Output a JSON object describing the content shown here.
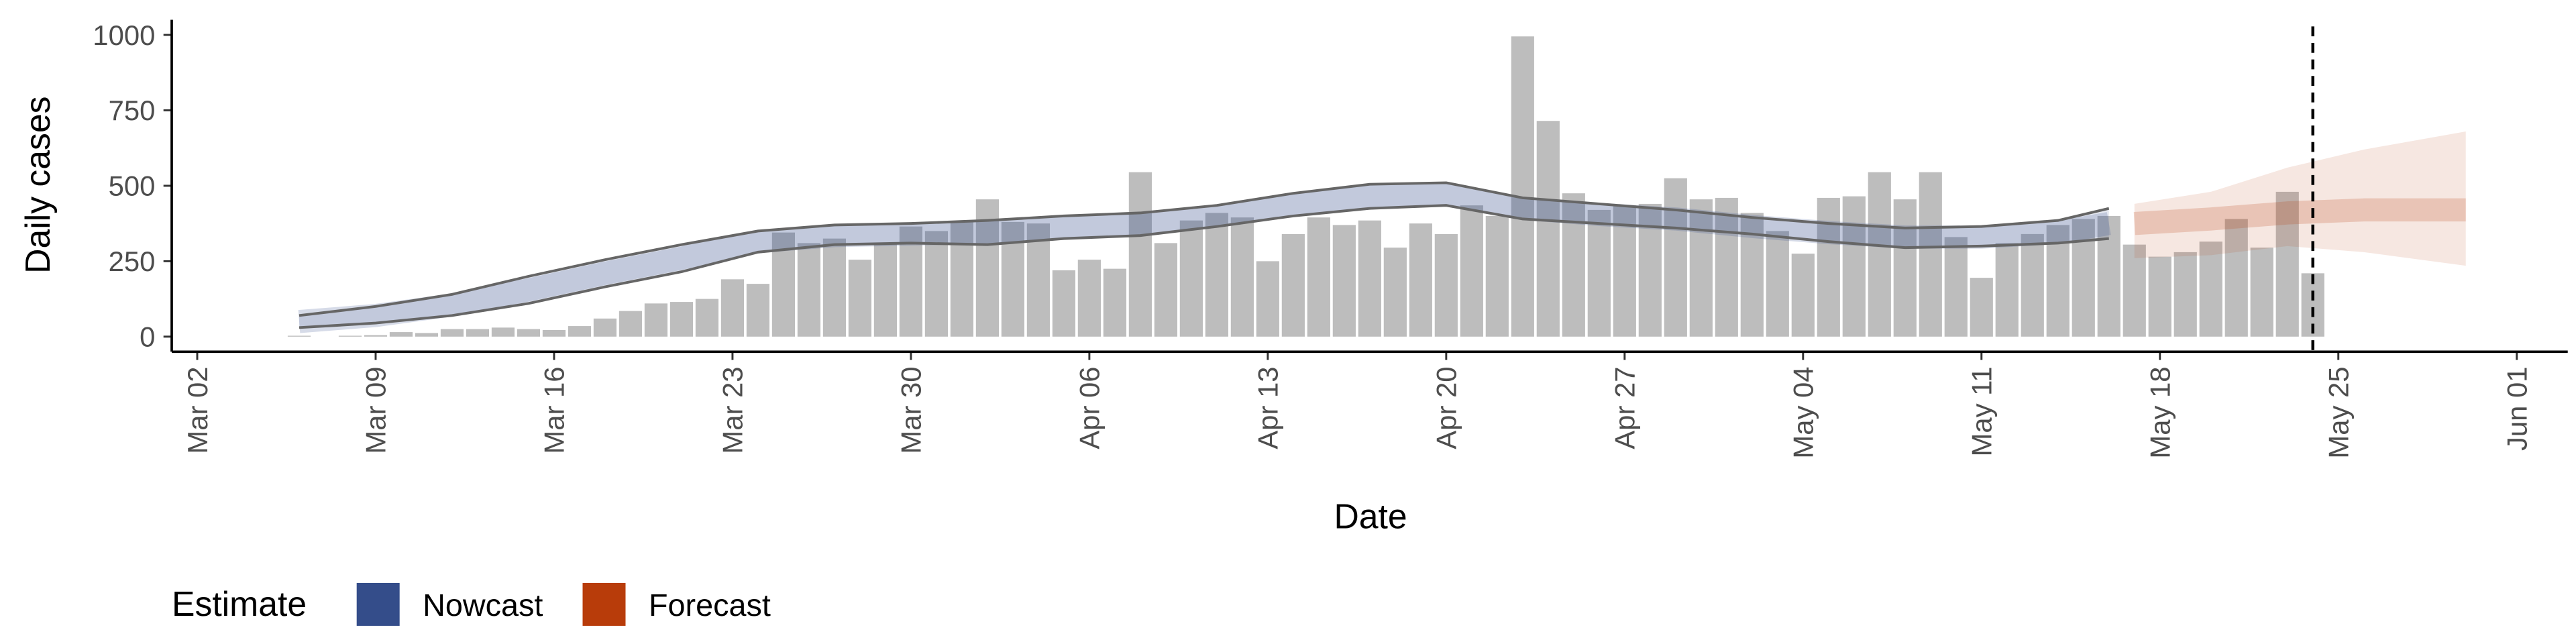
{
  "chart_data": {
    "type": "bar",
    "x_label": "Date",
    "y_label": "Daily cases",
    "x": [
      "Mar 06",
      "Mar 07",
      "Mar 08",
      "Mar 09",
      "Mar 10",
      "Mar 11",
      "Mar 12",
      "Mar 13",
      "Mar 14",
      "Mar 15",
      "Mar 16",
      "Mar 17",
      "Mar 18",
      "Mar 19",
      "Mar 20",
      "Mar 21",
      "Mar 22",
      "Mar 23",
      "Mar 24",
      "Mar 25",
      "Mar 26",
      "Mar 27",
      "Mar 28",
      "Mar 29",
      "Mar 30",
      "Mar 31",
      "Apr 01",
      "Apr 02",
      "Apr 03",
      "Apr 04",
      "Apr 05",
      "Apr 06",
      "Apr 07",
      "Apr 08",
      "Apr 09",
      "Apr 10",
      "Apr 11",
      "Apr 12",
      "Apr 13",
      "Apr 14",
      "Apr 15",
      "Apr 16",
      "Apr 17",
      "Apr 18",
      "Apr 19",
      "Apr 20",
      "Apr 21",
      "Apr 22",
      "Apr 23",
      "Apr 24",
      "Apr 25",
      "Apr 26",
      "Apr 27",
      "Apr 28",
      "Apr 29",
      "Apr 30",
      "May 01",
      "May 02",
      "May 03",
      "May 04",
      "May 05",
      "May 06",
      "May 07",
      "May 08",
      "May 09",
      "May 10",
      "May 11",
      "May 12",
      "May 13",
      "May 14",
      "May 15",
      "May 16",
      "May 17",
      "May 18",
      "May 19",
      "May 20",
      "May 21",
      "May 22",
      "May 23",
      "May 24"
    ],
    "values": [
      3,
      0,
      3,
      5,
      15,
      12,
      25,
      25,
      30,
      25,
      22,
      35,
      60,
      85,
      110,
      115,
      125,
      190,
      175,
      345,
      310,
      325,
      255,
      310,
      365,
      350,
      380,
      455,
      380,
      375,
      220,
      255,
      225,
      545,
      310,
      385,
      410,
      395,
      250,
      340,
      395,
      370,
      385,
      295,
      375,
      340,
      435,
      400,
      995,
      715,
      475,
      420,
      435,
      440,
      525,
      455,
      460,
      410,
      350,
      275,
      460,
      465,
      545,
      455,
      545,
      330,
      195,
      310,
      340,
      370,
      390,
      400,
      305,
      265,
      280,
      315,
      390,
      295,
      480,
      210
    ],
    "color": "#bdbdbd",
    "legend_title": "Estimate",
    "legend_position": "bottom",
    "estimates": [
      {
        "name": "Nowcast",
        "color": "#344d8a",
        "x": [
          "Mar 06",
          "Mar 09",
          "Mar 12",
          "Mar 15",
          "Mar 18",
          "Mar 21",
          "Mar 24",
          "Mar 27",
          "Mar 30",
          "Apr 02",
          "Apr 05",
          "Apr 08",
          "Apr 11",
          "Apr 14",
          "Apr 17",
          "Apr 20",
          "Apr 23",
          "Apr 26",
          "Apr 29",
          "May 02",
          "May 05",
          "May 08",
          "May 11",
          "May 14",
          "May 16"
        ],
        "upper": [
          70,
          100,
          140,
          200,
          255,
          305,
          350,
          370,
          375,
          385,
          400,
          410,
          435,
          475,
          505,
          510,
          460,
          440,
          420,
          395,
          375,
          360,
          365,
          385,
          425
        ],
        "median": [
          50,
          70,
          105,
          155,
          210,
          260,
          315,
          335,
          340,
          345,
          360,
          370,
          400,
          435,
          465,
          470,
          425,
          405,
          390,
          365,
          345,
          330,
          330,
          345,
          375
        ],
        "lower": [
          30,
          45,
          70,
          110,
          165,
          215,
          280,
          305,
          310,
          305,
          325,
          335,
          365,
          400,
          425,
          435,
          390,
          375,
          360,
          340,
          315,
          295,
          300,
          310,
          325
        ]
      },
      {
        "name": "Forecast",
        "color": "#b83c0a",
        "x": [
          "May 17",
          "May 20",
          "May 23",
          "May 26",
          "May 30"
        ],
        "upper": [
          440,
          480,
          560,
          620,
          680
        ],
        "median": [
          375,
          390,
          410,
          420,
          420
        ],
        "lower": [
          260,
          270,
          300,
          280,
          235
        ]
      }
    ],
    "vline": "May 24",
    "xlim": [
      "Mar 01",
      "Jun 03"
    ],
    "xticks": [
      "Mar 02",
      "Mar 09",
      "Mar 16",
      "Mar 23",
      "Mar 30",
      "Apr 06",
      "Apr 13",
      "Apr 20",
      "Apr 27",
      "May 04",
      "May 11",
      "May 18",
      "May 25",
      "Jun 01"
    ],
    "ylim": [
      -50,
      1050
    ],
    "yticks": [
      0,
      250,
      500,
      750,
      1000
    ]
  }
}
